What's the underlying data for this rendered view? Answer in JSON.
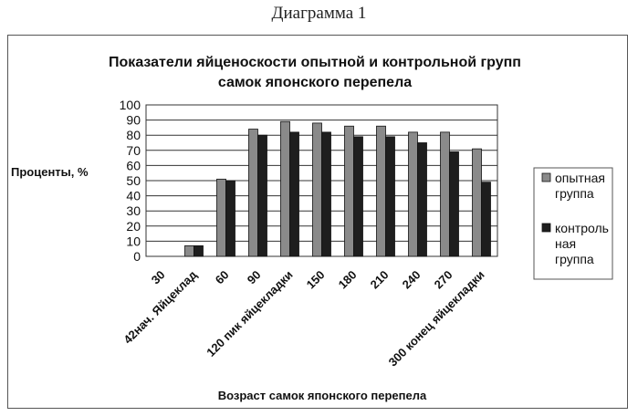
{
  "caption": "Диаграмма 1",
  "chart_data": {
    "type": "bar",
    "title_lines": [
      "Показатели яйценоскости опытной и контрольной групп",
      "самок японского перепела"
    ],
    "ylabel": "Проценты, %",
    "xlabel": "Возраст самок  японского перепела",
    "ylim": [
      0,
      100
    ],
    "yticks": [
      0,
      10,
      20,
      30,
      40,
      50,
      60,
      70,
      80,
      90,
      100
    ],
    "grid": true,
    "legend_position": "right",
    "categories": [
      "30",
      "42нач. Яйцеклад",
      "60",
      "90",
      "120 пик яйцекладки",
      "150",
      "180",
      "210",
      "240",
      "270",
      "300 конец яйцекладки"
    ],
    "series": [
      {
        "name_lines": [
          "опытная",
          "группа"
        ],
        "color": "#8a8a8a",
        "values": [
          0,
          7,
          51,
          84,
          89,
          88,
          86,
          86,
          82,
          82,
          71
        ]
      },
      {
        "name_lines": [
          "контроль",
          "ная",
          "группа"
        ],
        "color": "#1e1e1e",
        "values": [
          0,
          7,
          50,
          80,
          82,
          82,
          79,
          79,
          75,
          69,
          49
        ]
      }
    ]
  }
}
